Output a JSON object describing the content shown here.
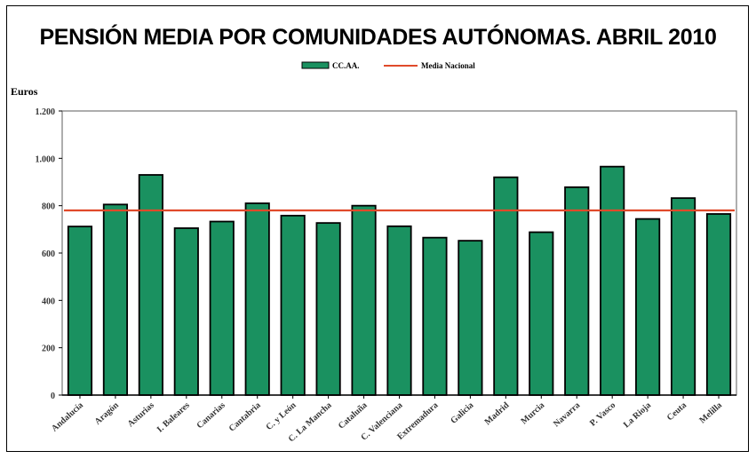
{
  "chart_data": {
    "type": "bar",
    "title": "PENSIÓN MEDIA POR COMUNIDADES AUTÓNOMAS. ABRIL 2010",
    "ylabel": "Euros",
    "xlabel": "",
    "ylim": [
      0,
      1200
    ],
    "yticks": [
      0,
      200,
      400,
      600,
      800,
      1000,
      1200
    ],
    "ytick_labels": [
      "0",
      "200",
      "400",
      "600",
      "800",
      "1.000",
      "1.200"
    ],
    "categories": [
      "Andalucía",
      "Aragón",
      "Asturias",
      "I. Baleares",
      "Canarias",
      "Cantabria",
      "C. y León",
      "C. La Mancha",
      "Cataluña",
      "C. Valenciana",
      "Extremadura",
      "Galicia",
      "Madrid",
      "Murcia",
      "Navarra",
      "P. Vasco",
      "La Rioja",
      "Ceuta",
      "Melilla"
    ],
    "series": [
      {
        "name": "CC.AA.",
        "color": "#1a9160",
        "values": [
          712,
          805,
          930,
          705,
          733,
          810,
          758,
          727,
          800,
          713,
          665,
          652,
          920,
          688,
          878,
          965,
          744,
          832,
          765
        ]
      },
      {
        "name": "Media Nacional",
        "color": "#e04a2a",
        "type": "line",
        "value": 780
      }
    ],
    "legend_position": "top-center",
    "grid": false
  }
}
